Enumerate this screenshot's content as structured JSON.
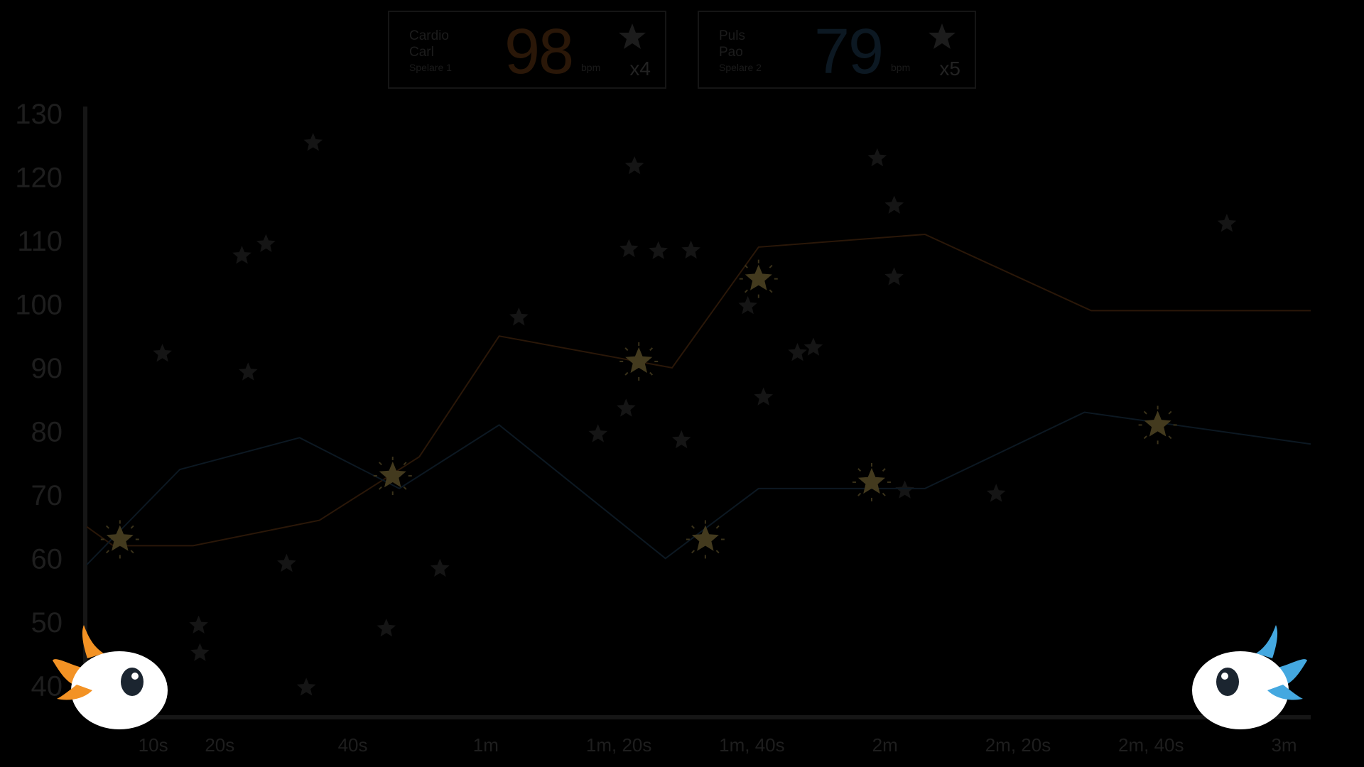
{
  "players": [
    {
      "name_line1": "Cardio",
      "name_line2": "Carl",
      "role": "Spelare 1",
      "bpm": "98",
      "unit": "bpm",
      "stars": "x4",
      "color": "#2a1708"
    },
    {
      "name_line1": "Puls",
      "name_line2": "Pao",
      "role": "Spelare 2",
      "bpm": "79",
      "unit": "bpm",
      "stars": "x5",
      "color": "#0c1822"
    }
  ],
  "mascots": {
    "left_color": "#f39224",
    "right_color": "#44a8e0"
  },
  "chart_data": {
    "type": "line",
    "ylim": [
      35,
      130
    ],
    "y_ticks": [
      "130",
      "120",
      "110",
      "100",
      "90",
      "80",
      "70",
      "60",
      "50",
      "40"
    ],
    "x_ticks": [
      {
        "label": "10s",
        "t": 10
      },
      {
        "label": "20s",
        "t": 20
      },
      {
        "label": "40s",
        "t": 40
      },
      {
        "label": "1m",
        "t": 60
      },
      {
        "label": "1m, 20s",
        "t": 80
      },
      {
        "label": "1m, 40s",
        "t": 100
      },
      {
        "label": "2m",
        "t": 120
      },
      {
        "label": "2m, 20s",
        "t": 140
      },
      {
        "label": "2m, 40s",
        "t": 160
      },
      {
        "label": "3m",
        "t": 180
      }
    ],
    "xlim": [
      0,
      184
    ],
    "series": [
      {
        "color": "#2a1708",
        "points": [
          [
            0,
            65
          ],
          [
            4,
            62
          ],
          [
            16,
            62
          ],
          [
            35,
            66
          ],
          [
            50,
            76
          ],
          [
            62,
            95
          ],
          [
            88,
            90
          ],
          [
            101,
            109
          ],
          [
            126,
            111
          ],
          [
            151,
            99
          ],
          [
            184,
            99
          ]
        ]
      },
      {
        "color": "#0c1822",
        "points": [
          [
            0,
            59
          ],
          [
            14,
            74
          ],
          [
            32,
            79
          ],
          [
            47,
            71
          ],
          [
            62,
            81
          ],
          [
            87,
            60
          ],
          [
            101,
            71
          ],
          [
            126,
            71
          ],
          [
            150,
            83
          ],
          [
            184,
            78
          ]
        ]
      }
    ],
    "markers": [
      {
        "t": 5,
        "v": 63
      },
      {
        "t": 46,
        "v": 73
      },
      {
        "t": 83,
        "v": 91
      },
      {
        "t": 101,
        "v": 104
      },
      {
        "t": 93,
        "v": 63
      },
      {
        "t": 118,
        "v": 72
      },
      {
        "t": 161,
        "v": 81
      }
    ],
    "grid": false
  }
}
